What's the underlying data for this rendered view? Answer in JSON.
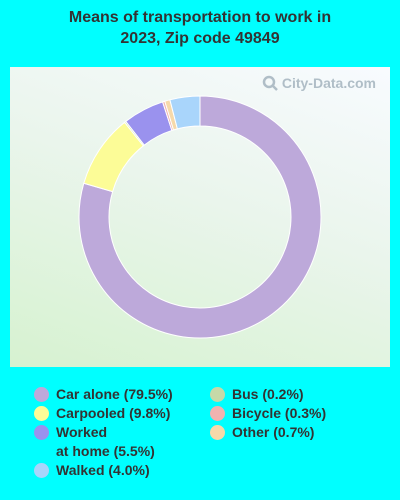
{
  "title_line1": "Means of transportation to work in",
  "title_line2": "2023, Zip code 49849",
  "watermark": "City-Data.com",
  "chart_data": {
    "type": "pie",
    "style": "donut",
    "slices": [
      {
        "label": "Car alone (79.5%)",
        "value": 79.5,
        "color": "#bda9da"
      },
      {
        "label": "Carpooled (9.8%)",
        "value": 9.8,
        "color": "#fcfc97"
      },
      {
        "label": "Bus (0.2%)",
        "value": 0.2,
        "color": "#c6d9a8"
      },
      {
        "label": "Worked at home (5.5%)",
        "value": 5.5,
        "color": "#9a92ee"
      },
      {
        "label": "Bicycle (0.3%)",
        "value": 0.3,
        "color": "#f0b3b0"
      },
      {
        "label": "Other (0.7%)",
        "value": 0.7,
        "color": "#f6d9aa"
      },
      {
        "label": "Walked (4.0%)",
        "value": 4.0,
        "color": "#a9d5fb"
      }
    ],
    "start": "top",
    "direction": "clockwise"
  },
  "legend": {
    "col1": [
      {
        "line1": "Car alone (79.5%)",
        "line2": "",
        "color": "#bda9da"
      },
      {
        "line1": "Carpooled (9.8%)",
        "line2": "",
        "color": "#fcfc97"
      },
      {
        "line1": "Worked",
        "line2": "at home (5.5%)",
        "color": "#9a92ee"
      },
      {
        "line1": "Walked (4.0%)",
        "line2": "",
        "color": "#a9d5fb"
      }
    ],
    "col2": [
      {
        "line1": "Bus (0.2%)",
        "line2": "",
        "color": "#c6d9a8"
      },
      {
        "line1": "Bicycle (0.3%)",
        "line2": "",
        "color": "#f0b3b0"
      },
      {
        "line1": "Other (0.7%)",
        "line2": "",
        "color": "#f6d9aa"
      }
    ]
  }
}
